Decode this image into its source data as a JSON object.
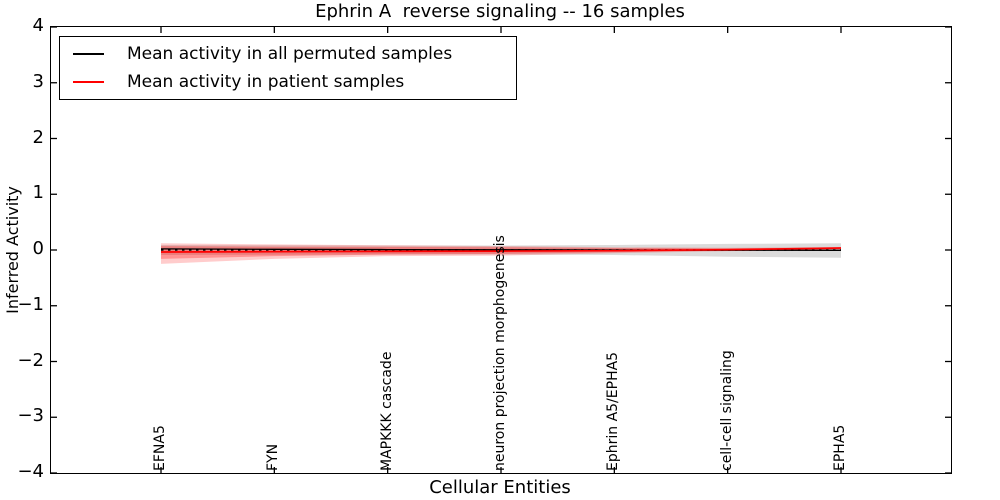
{
  "chart_data": {
    "type": "line",
    "title": "Ephrin A  reverse signaling -- 16 samples",
    "xlabel": "Cellular Entities",
    "ylabel": "Inferred Activity",
    "ylim": [
      -4,
      4
    ],
    "grid": false,
    "legend_position": "upper left",
    "categories": [
      "EFNA5",
      "FYN",
      "MAPKKK cascade",
      "neuron projection morphogenesis",
      "Ephrin A5/EPHA5",
      "cell-cell signaling",
      "EPHA5"
    ],
    "yticks": [
      4,
      3,
      2,
      1,
      0,
      -1,
      -2,
      -3,
      -4
    ],
    "ytick_labels": [
      "4",
      "3",
      "2",
      "1",
      "0",
      "−1",
      "−2",
      "−3",
      "−4"
    ],
    "series": [
      {
        "name": "Mean activity in all permuted samples",
        "color": "#000000",
        "style": "solid",
        "width": 1.3,
        "values": [
          0.02,
          0.012,
          0.008,
          0.004,
          0.0,
          -0.003,
          -0.005
        ]
      },
      {
        "name": "Mean activity in patient samples",
        "color": "#ff0000",
        "style": "solid",
        "width": 1.7,
        "values": [
          -0.035,
          -0.03,
          -0.025,
          -0.02,
          -0.012,
          0.005,
          0.035
        ]
      }
    ],
    "reference_line": {
      "value": 0.0,
      "color": "#000000",
      "style": "dotted"
    },
    "bands": [
      {
        "name": "permuted-samples-std",
        "color": "#999999",
        "opacity": 0.35,
        "upper": [
          0.09,
          0.085,
          0.08,
          0.08,
          0.09,
          0.11,
          0.12
        ],
        "lower": [
          -0.09,
          -0.085,
          -0.08,
          -0.08,
          -0.09,
          -0.12,
          -0.14
        ]
      },
      {
        "name": "patient-samples-std-outer",
        "color": "#ff0000",
        "opacity": 0.2,
        "upper": [
          0.12,
          0.1,
          0.085,
          0.07,
          0.05,
          0.04,
          0.05
        ],
        "lower": [
          -0.25,
          -0.16,
          -0.11,
          -0.1,
          -0.06,
          -0.02,
          0.01
        ]
      },
      {
        "name": "patient-samples-std-inner",
        "color": "#ff0000",
        "opacity": 0.28,
        "upper": [
          0.07,
          0.06,
          0.055,
          0.05,
          0.035,
          0.03,
          0.045
        ],
        "lower": [
          -0.16,
          -0.11,
          -0.08,
          -0.07,
          -0.04,
          -0.01,
          0.015
        ]
      }
    ]
  },
  "legend": {
    "items": [
      {
        "label": "Mean activity in all permuted samples",
        "color": "#000000"
      },
      {
        "label": "Mean activity in patient samples",
        "color": "#ff0000"
      }
    ]
  }
}
